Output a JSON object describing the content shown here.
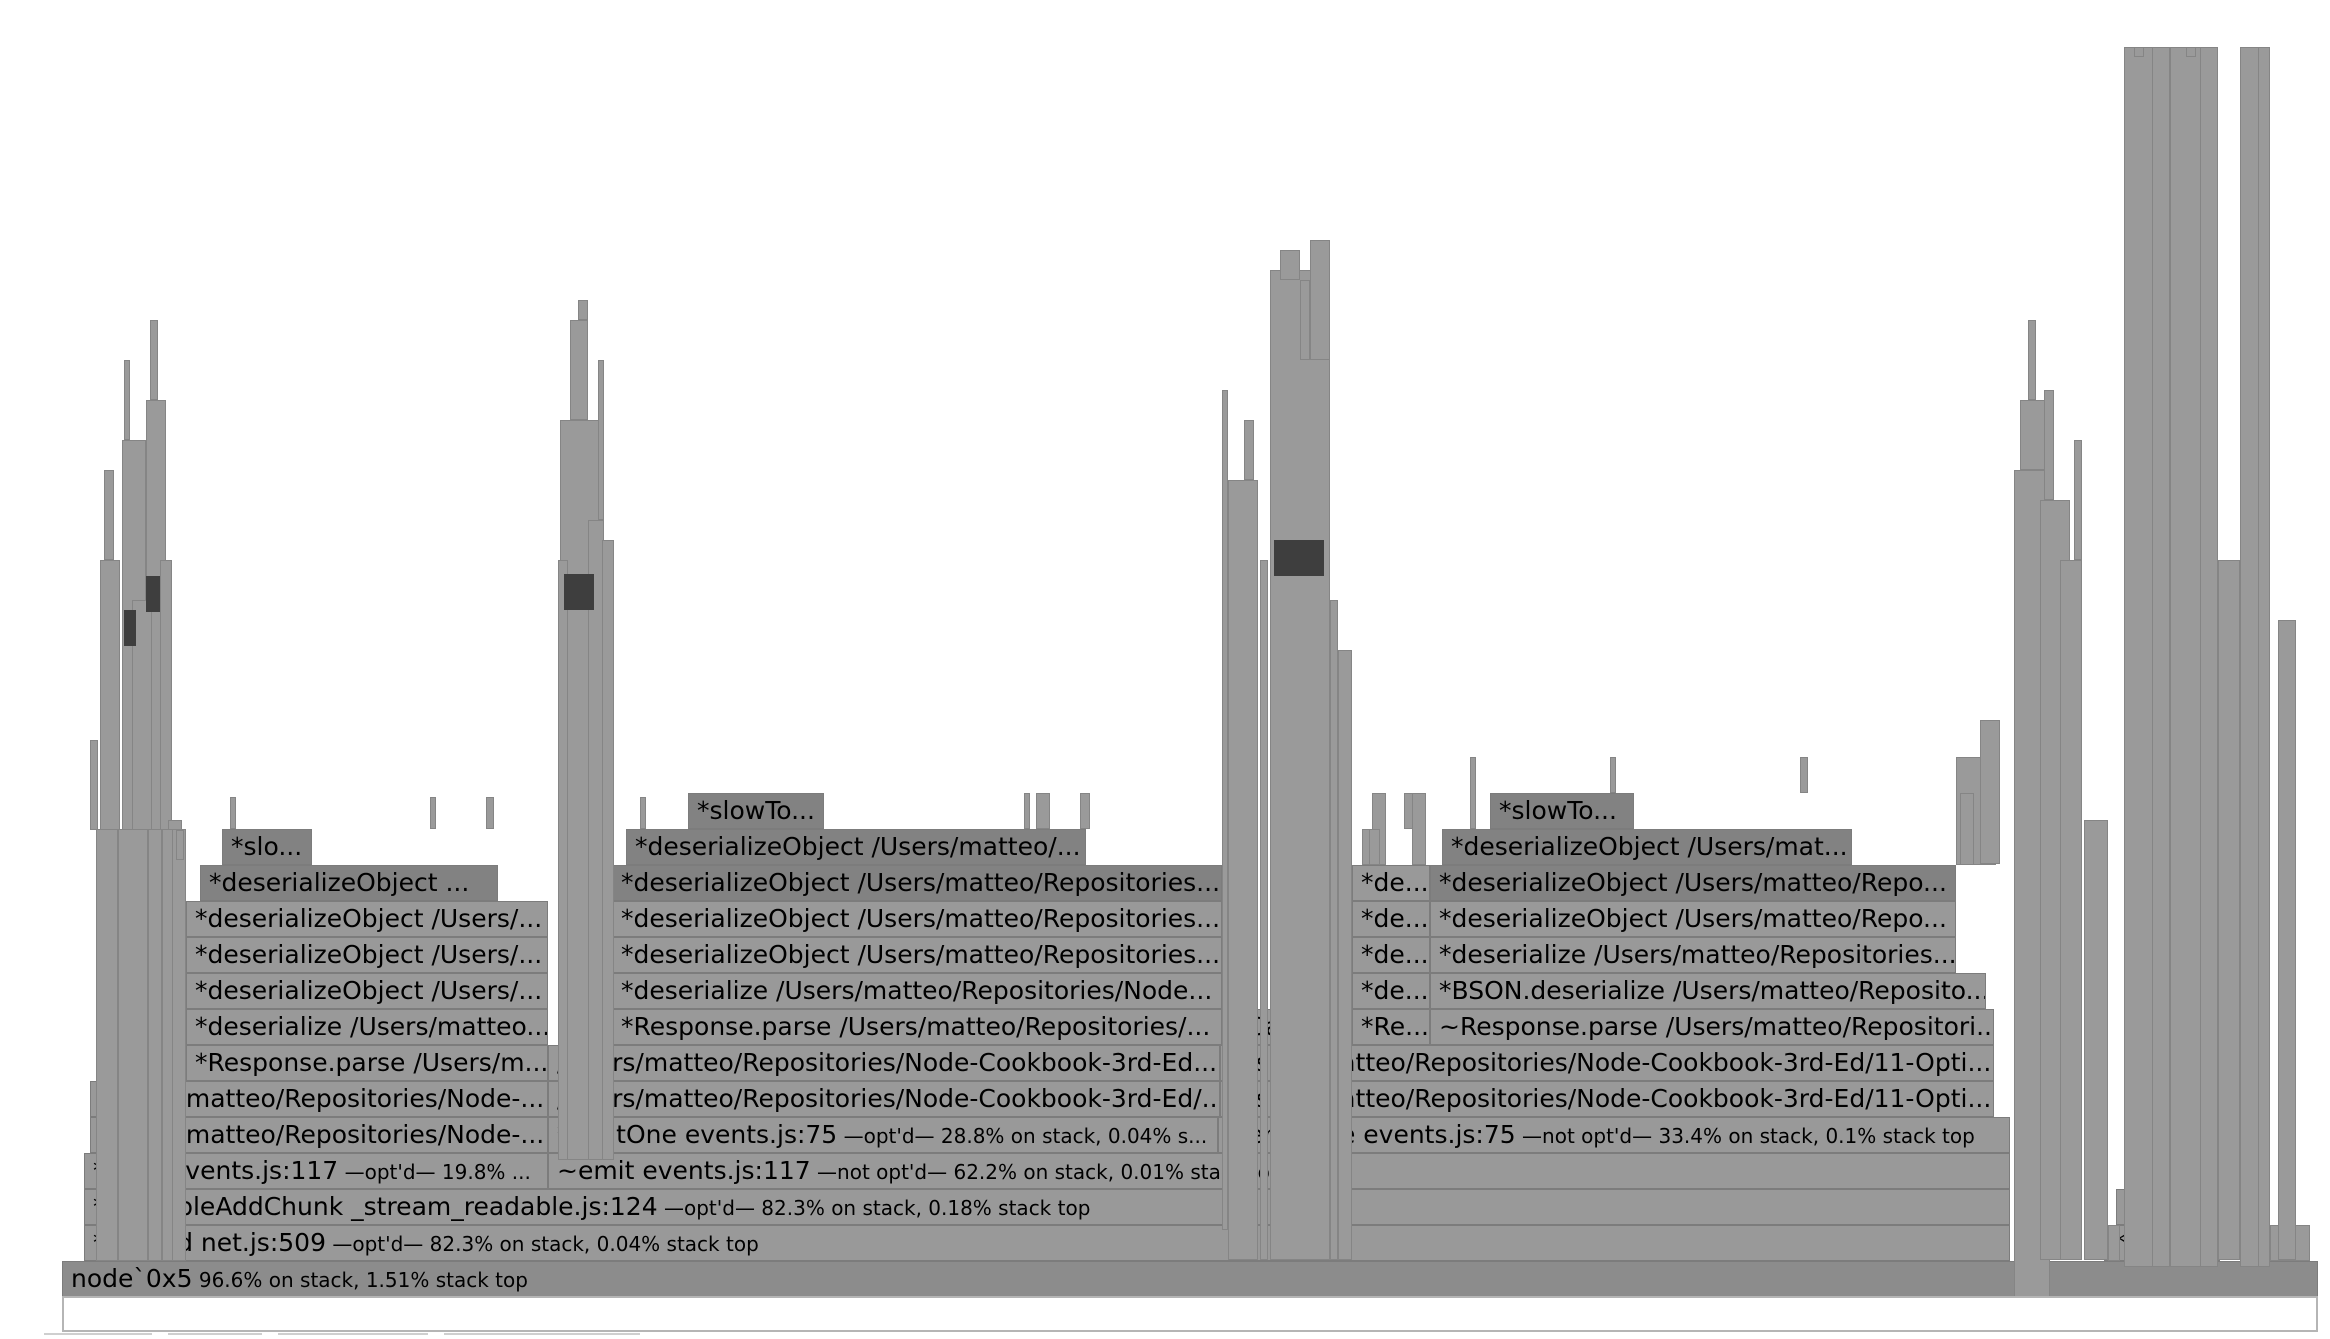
{
  "flamegraph": {
    "colors": {
      "frame_default": "#999999",
      "frame_medium": "#8c8c8c",
      "frame_dark": "#828282",
      "frame_hot": "#3e3e3e",
      "border": "#7c7c7c"
    },
    "frames": [
      {
        "text": "node`0x5",
        "sub": "96.6% on stack, 1.51% stack top",
        "shade": "medium"
      },
      {
        "text": "*onread net.js:509",
        "sub": "—opt'd— 82.3% on stack, 0.04% stack top",
        "shade": "default"
      },
      {
        "text": "*parse...",
        "sub": "",
        "shade": "default"
      },
      {
        "text": "*readableAddChunk _stream_readable.js:124",
        "sub": "—opt'd— 82.3% on stack, 0.18% stack top",
        "shade": "default"
      },
      {
        "text": "~pars...",
        "sub": "",
        "shade": "default"
      },
      {
        "text": "*emit events.js:117",
        "sub": "—opt'd— 19.8% ...",
        "shade": "default"
      },
      {
        "text": "~emit events.js:117",
        "sub": "—not opt'd— 62.2% on stack, 0.01% stack top",
        "shade": "default"
      },
      {
        "text": "~e...",
        "sub": "",
        "shade": "default"
      },
      {
        "text": "/Users/matteo/Repositories/Node-...",
        "sub": "",
        "shade": "default"
      },
      {
        "text": "*emitOne events.js:75",
        "sub": "—opt'd— 28.8% on stack, 0.04% s...",
        "shade": "default"
      },
      {
        "text": "~emitOne events.js:75",
        "sub": "—not opt'd— 33.4% on stack, 0.1% stack top",
        "shade": "default"
      },
      {
        "text": "~e...",
        "sub": "",
        "shade": "default"
      },
      {
        "text": "/Users/matteo/Repositories/Node-...",
        "sub": "",
        "shade": "default"
      },
      {
        "text": "/Users/matteo/Repositories/Node-Cookbook-3rd-Ed/...",
        "sub": "",
        "shade": "default"
      },
      {
        "text": "/Users/matteo/Repositories/Node-Cookbook-3rd-Ed/11-Opti...",
        "sub": "",
        "shade": "default"
      },
      {
        "text": "*ap...",
        "sub": "",
        "shade": "default"
      },
      {
        "text": "*Response.parse /Users/m...",
        "sub": "",
        "shade": "default"
      },
      {
        "text": "/Users/matteo/Repositories/Node-Cookbook-3rd-Ed...",
        "sub": "",
        "shade": "default"
      },
      {
        "text": "/Users/matteo/Repositories/Node-Cookbook-3rd-Ed/11-Opti...",
        "sub": "",
        "shade": "default"
      },
      {
        "text": "*deserialize /Users/matteo...",
        "sub": "",
        "shade": "default"
      },
      {
        "text": "*Response.parse /Users/matteo/Repositories/...",
        "sub": "",
        "shade": "default"
      },
      {
        "text": "*Call...",
        "sub": "",
        "shade": "default"
      },
      {
        "text": "*Re...",
        "sub": "",
        "shade": "default"
      },
      {
        "text": "~Response.parse /Users/matteo/Repositori...",
        "sub": "",
        "shade": "default"
      },
      {
        "text": "*deserializeObject /Users/...",
        "sub": "",
        "shade": "default"
      },
      {
        "text": "*deserialize /Users/matteo/Repositories/Node...",
        "sub": "",
        "shade": "default"
      },
      {
        "text": "*de...",
        "sub": "",
        "shade": "default"
      },
      {
        "text": "*BSON.deserialize /Users/matteo/Reposito...",
        "sub": "",
        "shade": "default"
      },
      {
        "text": "*deserializeObject /Users/...",
        "sub": "",
        "shade": "default"
      },
      {
        "text": "*deserializeObject /Users/matteo/Repositories...",
        "sub": "",
        "shade": "default"
      },
      {
        "text": "*de...",
        "sub": "",
        "shade": "default"
      },
      {
        "text": "*deserialize /Users/matteo/Repositories...",
        "sub": "",
        "shade": "default"
      },
      {
        "text": "*deserializeObject /Users/...",
        "sub": "",
        "shade": "default"
      },
      {
        "text": "*deserializeObject /Users/matteo/Repositories...",
        "sub": "",
        "shade": "default"
      },
      {
        "text": "*de...",
        "sub": "",
        "shade": "default"
      },
      {
        "text": "*deserializeObject /Users/matteo/Repo...",
        "sub": "",
        "shade": "default"
      },
      {
        "text": "*deserializeObject ...",
        "sub": "",
        "shade": "dark"
      },
      {
        "text": "*deserializeObject /Users/matteo/Repositories...",
        "sub": "",
        "shade": "dark"
      },
      {
        "text": "*de...",
        "sub": "",
        "shade": "default"
      },
      {
        "text": "*deserializeObject /Users/matteo/Repo...",
        "sub": "",
        "shade": "dark"
      },
      {
        "text": "*slo...",
        "sub": "",
        "shade": "dark"
      },
      {
        "text": "*deserializeObject /Users/matteo/...",
        "sub": "",
        "shade": "dark"
      },
      {
        "text": "*deserializeObject /Users/mat...",
        "sub": "",
        "shade": "dark"
      },
      {
        "text": "*slowTo...",
        "sub": "",
        "shade": "dark"
      },
      {
        "text": "*slowTo...",
        "sub": "",
        "shade": "dark"
      }
    ]
  }
}
